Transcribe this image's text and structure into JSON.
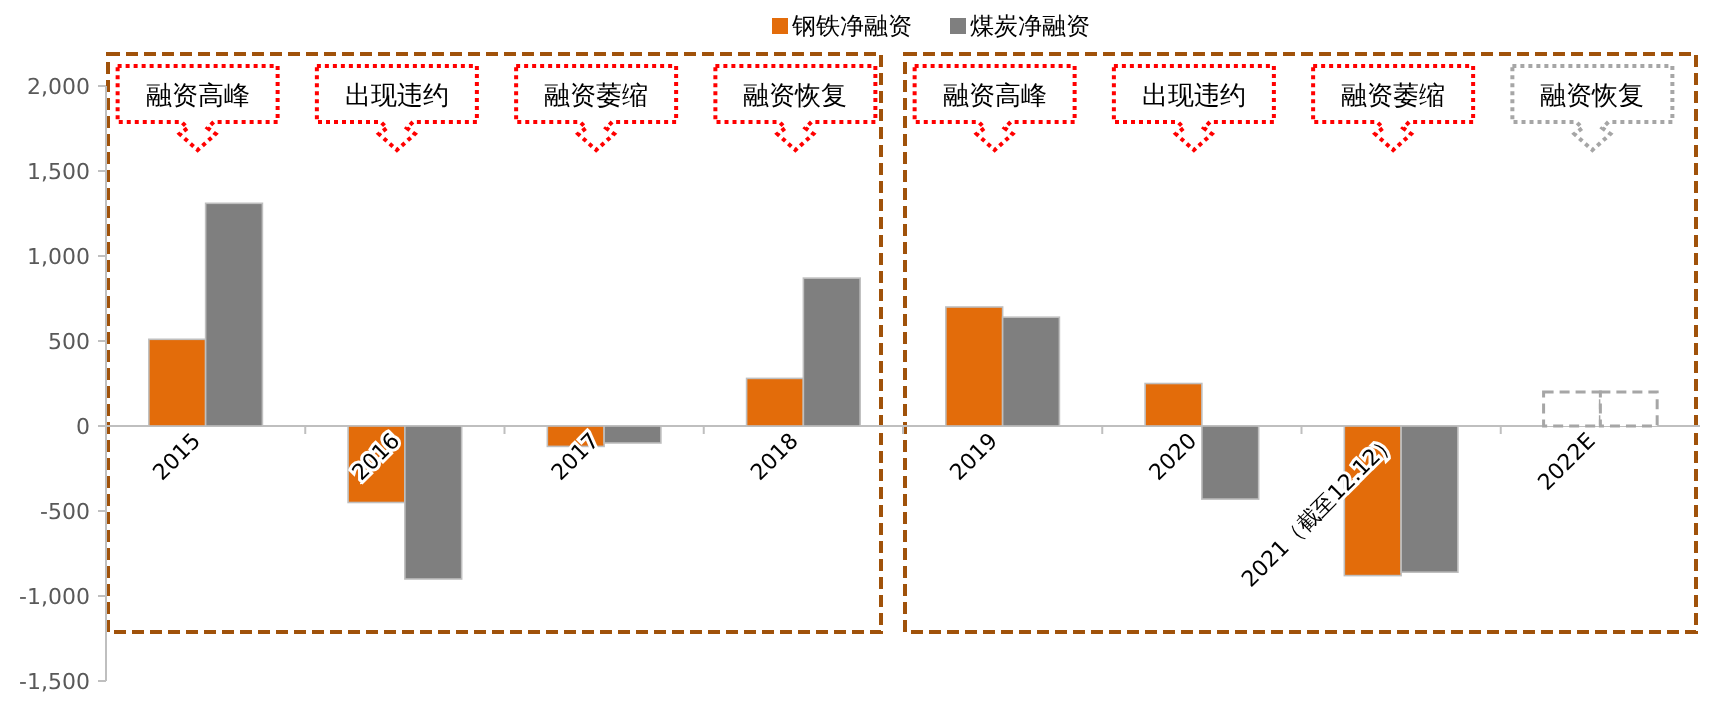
{
  "chart_data": {
    "type": "bar",
    "categories": [
      "2015",
      "2016",
      "2017",
      "2018",
      "2019",
      "2020",
      "2021（截至12.12）",
      "2022E"
    ],
    "series": [
      {
        "name": "钢铁净融资",
        "color": "#e36c0a",
        "colors": [
          "#e36c0a",
          "#e36c0a",
          "#e36c0a",
          "#e36c0a",
          "#e36c0a",
          "#e36c0a",
          "#e36c0a",
          "#ffffff"
        ],
        "values": [
          510,
          -450,
          -120,
          280,
          700,
          250,
          -880,
          200
        ]
      },
      {
        "name": "煤炭净融资",
        "color": "#7f7f7f",
        "colors": [
          "#7f7f7f",
          "#7f7f7f",
          "#7f7f7f",
          "#7f7f7f",
          "#7f7f7f",
          "#7f7f7f",
          "#7f7f7f",
          "#ffffff"
        ],
        "values": [
          1310,
          -900,
          -100,
          870,
          640,
          -430,
          -860,
          200
        ]
      }
    ],
    "ylim": [
      -1500,
      2000
    ],
    "yticks": [
      {
        "value": -1500,
        "label": "-1,500"
      },
      {
        "value": -1000,
        "label": "-1,000"
      },
      {
        "value": -500,
        "label": "-500"
      },
      0,
      {
        "value": 500,
        "label": "500"
      },
      {
        "value": 1000,
        "label": "1,000"
      },
      {
        "value": 1500,
        "label": "1,500"
      },
      {
        "value": 2000,
        "label": "2,000"
      }
    ],
    "legend": "top",
    "annotations": [
      "融资高峰",
      "出现违约",
      "融资萎缩",
      "融资恢复",
      "融资高峰",
      "出现违约",
      "融资萎缩",
      "融资恢复"
    ]
  }
}
